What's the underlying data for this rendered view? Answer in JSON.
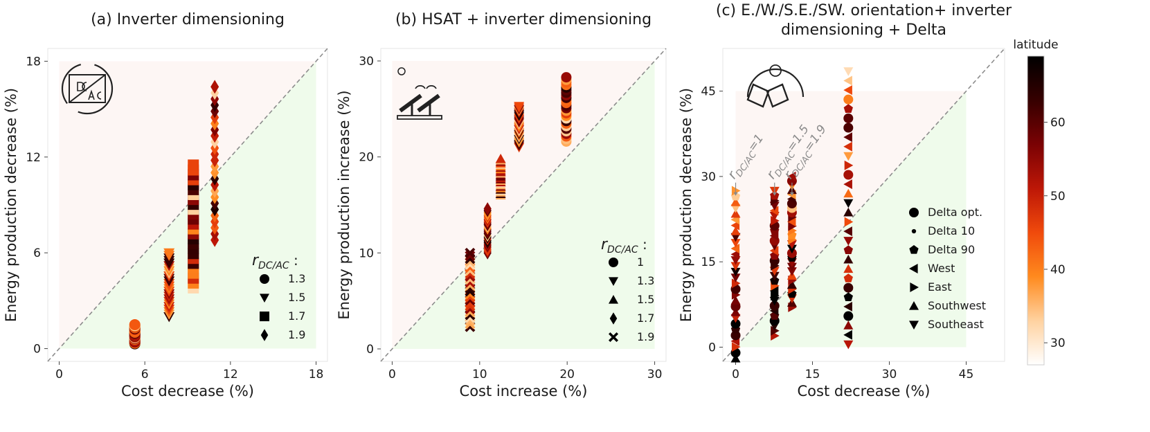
{
  "figure": {
    "colorbar": {
      "label": "latitude",
      "ticks": [
        30,
        40,
        50,
        60
      ],
      "range": [
        27,
        69
      ]
    }
  },
  "colors": {
    "band_above": "#fdf6f4",
    "band_below": "#effbeb",
    "diagonal": "#8c8c8c",
    "colormap": [
      "#ffffff",
      "#ffd2a0",
      "#ff8a1e",
      "#f04a0c",
      "#bd1707",
      "#7a0204",
      "#360000",
      "#000000"
    ]
  },
  "chart_data": [
    {
      "type": "scatter",
      "title": "(a) Inverter dimensioning",
      "xlabel": "Cost decrease (%)",
      "ylabel": "Energy production decrease (%)",
      "xlim": [
        -0.8,
        18.8
      ],
      "ylim": [
        -0.8,
        18.8
      ],
      "xticks": [
        "0",
        "6",
        "12",
        "18"
      ],
      "yticks": [
        "0",
        "6",
        "12",
        "18"
      ],
      "grid": false,
      "diagonal": true,
      "legend": {
        "title_main": "r",
        "title_sub": "DC/AC",
        "title_colon": ":",
        "placement": "lower-right",
        "entries": [
          {
            "marker": "circle",
            "label": "1.3"
          },
          {
            "marker": "triangle-down",
            "label": "1.5"
          },
          {
            "marker": "square",
            "label": "1.7"
          },
          {
            "marker": "diamond",
            "label": "1.9"
          }
        ]
      },
      "series": [
        {
          "name": "1.3",
          "marker": "circle",
          "x": 5.3,
          "y_range": [
            0.3,
            1.5
          ]
        },
        {
          "name": "1.5",
          "marker": "triangle-down",
          "x": 7.7,
          "y_range": [
            2.0,
            6.0
          ]
        },
        {
          "name": "1.7",
          "marker": "square",
          "x": 9.4,
          "y_range": [
            3.8,
            11.5
          ]
        },
        {
          "name": "1.9",
          "marker": "diamond",
          "x": 10.9,
          "y_range": [
            6.8,
            16.4
          ]
        }
      ]
    },
    {
      "type": "scatter",
      "title": "(b) HSAT + inverter dimensioning",
      "xlabel": "Cost increase (%)",
      "ylabel": "Energy production increase (%)",
      "xlim": [
        -1.3,
        31.3
      ],
      "ylim": [
        -1.3,
        31.3
      ],
      "xticks": [
        "0",
        "10",
        "20",
        "30"
      ],
      "yticks": [
        "0",
        "10",
        "20",
        "30"
      ],
      "grid": false,
      "diagonal": true,
      "legend": {
        "title_main": "r",
        "title_sub": "DC/AC",
        "title_colon": ":",
        "placement": "lower-right",
        "entries": [
          {
            "marker": "circle",
            "label": "1"
          },
          {
            "marker": "triangle-down",
            "label": "1.3"
          },
          {
            "marker": "triangle-up",
            "label": "1.5"
          },
          {
            "marker": "diamond",
            "label": "1.7"
          },
          {
            "marker": "x",
            "label": "1.9"
          }
        ]
      },
      "series": [
        {
          "name": "1.9",
          "marker": "x",
          "x": 8.9,
          "y_range": [
            2.3,
            10.0
          ]
        },
        {
          "name": "1.7",
          "marker": "diamond",
          "x": 10.9,
          "y_range": [
            10.0,
            14.6
          ]
        },
        {
          "name": "1.5",
          "marker": "triangle-up",
          "x": 12.4,
          "y_range": [
            16.0,
            19.8
          ]
        },
        {
          "name": "1.3",
          "marker": "triangle-down",
          "x": 14.5,
          "y_range": [
            21.0,
            25.3
          ]
        },
        {
          "name": "1",
          "marker": "circle",
          "x": 19.9,
          "y_range": [
            21.6,
            28.3
          ]
        }
      ]
    },
    {
      "type": "scatter",
      "title_lines": [
        "(c) E./W./S.E./SW. orientation+ inverter",
        "dimensioning + Delta"
      ],
      "xlabel": "Cost decrease (%)",
      "ylabel": "Energy production decrease (%)",
      "xlim": [
        -2.5,
        52.5
      ],
      "ylim": [
        -2.5,
        52.5
      ],
      "xticks": [
        "0",
        "15",
        "30",
        "45"
      ],
      "yticks": [
        "0",
        "15",
        "30",
        "45"
      ],
      "grid": false,
      "diagonal": true,
      "annotations": [
        {
          "main": "r",
          "sub": "DC/AC",
          "suffix": "=1",
          "x": 0,
          "y": 26
        },
        {
          "main": "r",
          "sub": "DC/AC",
          "suffix": "=1.5",
          "x": 7.6,
          "y": 26
        },
        {
          "main": "r",
          "sub": "DC/AC",
          "suffix": "=1.9",
          "x": 11,
          "y": 26
        }
      ],
      "legend": {
        "placement": "lower-right",
        "entries": [
          {
            "marker": "circle",
            "label": "Delta opt."
          },
          {
            "marker": "dot",
            "label": "Delta 10"
          },
          {
            "marker": "pentagon",
            "label": "Delta 90"
          },
          {
            "marker": "triangle-left",
            "label": "West"
          },
          {
            "marker": "triangle-right",
            "label": "East"
          },
          {
            "marker": "triangle-up",
            "label": "Southwest"
          },
          {
            "marker": "triangle-down",
            "label": "Southeast"
          }
        ]
      },
      "series": [
        {
          "name": "1",
          "marker": "mixed",
          "x": 0,
          "y_range": [
            -2.0,
            27.5
          ]
        },
        {
          "name": "1.5",
          "marker": "mixed",
          "x": 7.6,
          "y_range": [
            2.0,
            27.5
          ]
        },
        {
          "name": "1.9",
          "marker": "mixed",
          "x": 11,
          "y_range": [
            7.0,
            30.0
          ]
        },
        {
          "name": "Delta opt.",
          "marker": "mixed",
          "x": 22,
          "y_range": [
            0.5,
            48.5
          ]
        }
      ]
    }
  ]
}
